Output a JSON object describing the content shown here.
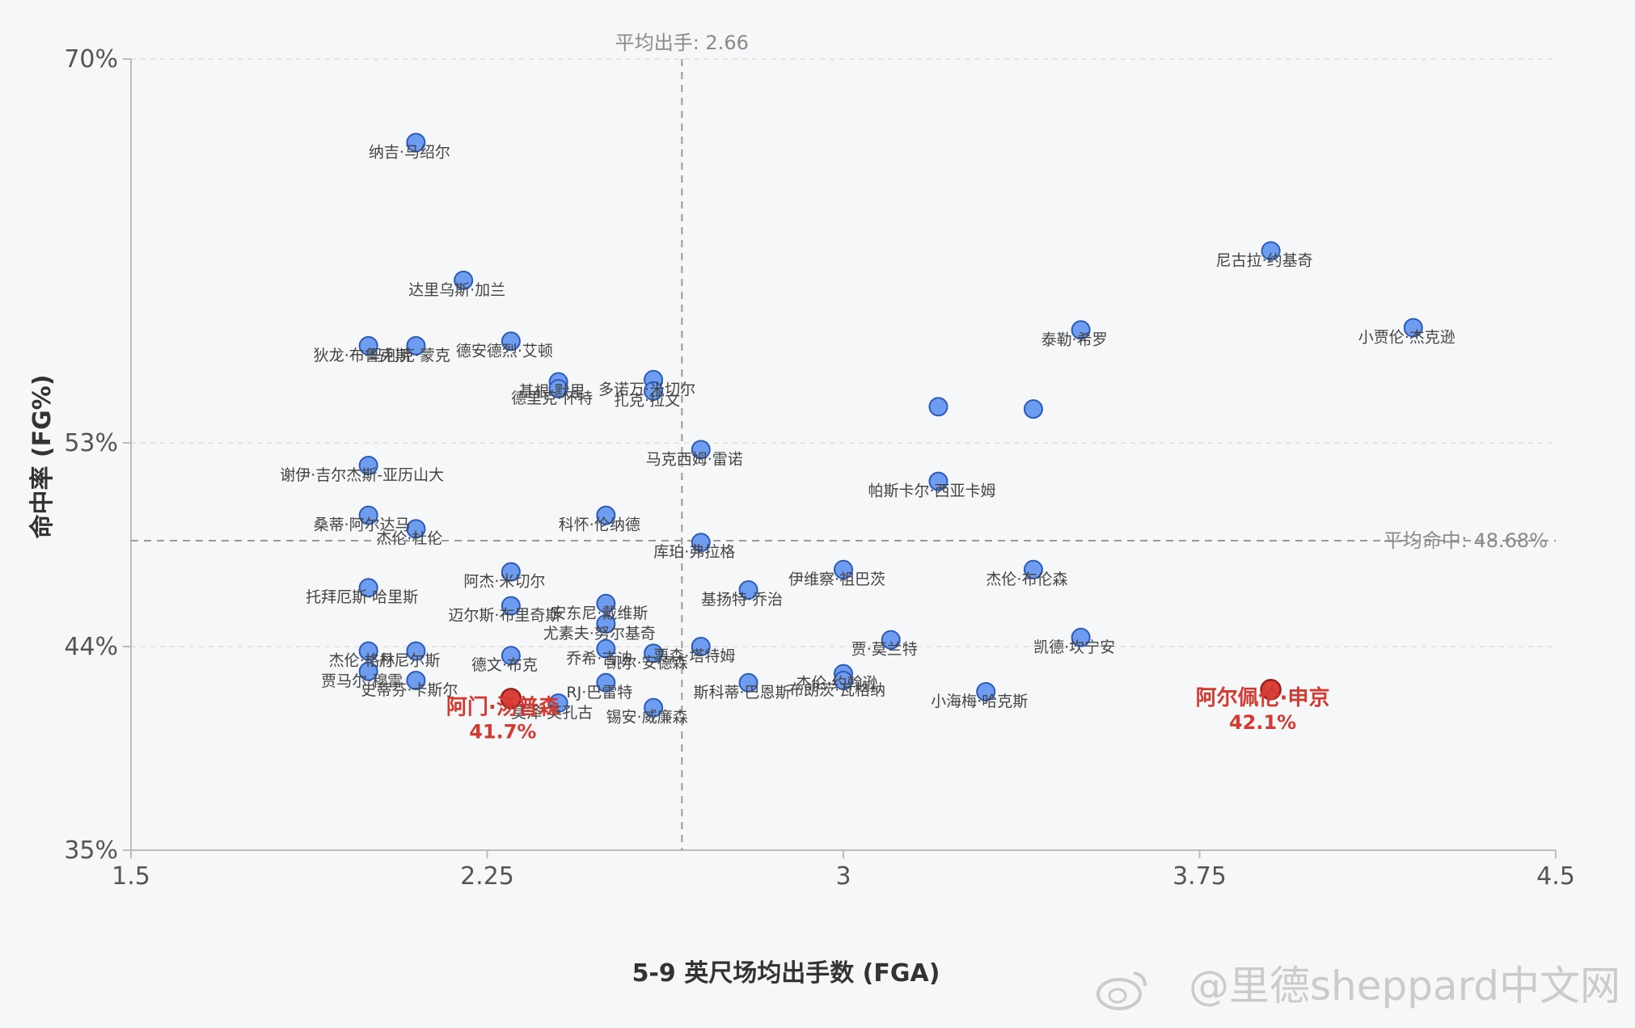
{
  "chart_data": {
    "type": "scatter",
    "title": "",
    "xlabel": "5-9 英尺场均出手数 (FGA)",
    "ylabel": "命中率 (FG%)",
    "xlim": [
      1.5,
      4.5
    ],
    "ylim": [
      35,
      70
    ],
    "x_ticks": [
      "1.5",
      "2.25",
      "3",
      "3.75",
      "4.5"
    ],
    "x_tick_values": [
      1.5,
      2.25,
      3,
      3.75,
      4.5
    ],
    "y_ticks": [
      "35%",
      "44%",
      "53%",
      "70%"
    ],
    "y_tick_values": [
      35,
      44,
      53,
      70
    ],
    "avg_x": {
      "value": 2.66,
      "label": "平均出手: 2.66"
    },
    "avg_y": {
      "value": 48.68,
      "label": "平均命中: 48.68%"
    },
    "colors": {
      "normal": "#6d9cf0",
      "normal_stroke": "#2c5ab8",
      "highlight": "#d9413a",
      "highlight_text": "#d33a32",
      "label": "#444444",
      "axis": "#bbbbbb",
      "grid": "#dddddd"
    },
    "points": [
      {
        "name": "纳吉·马绍尔",
        "x": 2.1,
        "y": 66.3
      },
      {
        "name": "尼古拉·约基奇",
        "x": 3.9,
        "y": 61.5
      },
      {
        "name": "达里乌斯·加兰",
        "x": 2.2,
        "y": 60.2
      },
      {
        "name": "泰勒·希罗",
        "x": 3.5,
        "y": 58.0
      },
      {
        "name": "小贾伦·杰克逊",
        "x": 4.2,
        "y": 58.1
      },
      {
        "name": "狄龙·布鲁克斯",
        "x": 2.0,
        "y": 57.3
      },
      {
        "name": "马利克·蒙克",
        "x": 2.1,
        "y": 57.3
      },
      {
        "name": "德安德烈·艾顿",
        "x": 2.3,
        "y": 57.5
      },
      {
        "name": "基根·默里",
        "x": 2.4,
        "y": 55.7
      },
      {
        "name": "德里克·怀特",
        "x": 2.4,
        "y": 55.4
      },
      {
        "name": "多诺万·米切尔",
        "x": 2.6,
        "y": 55.8
      },
      {
        "name": "扎克·拉文",
        "x": 2.6,
        "y": 55.3
      },
      {
        "name": "马克西姆·雷诺",
        "x": 2.7,
        "y": 52.7
      },
      {
        "name": "帕斯卡尔·西亚卡姆",
        "x": 3.2,
        "y": 51.3
      },
      {
        "name": "谢伊·吉尔杰斯-亚历山大",
        "x": 2.0,
        "y": 52.0
      },
      {
        "name": "桑蒂·阿尔达马",
        "x": 2.0,
        "y": 49.8
      },
      {
        "name": "杰伦·杜伦",
        "x": 2.1,
        "y": 49.2
      },
      {
        "name": "科怀·伦纳德",
        "x": 2.5,
        "y": 49.8
      },
      {
        "name": "库珀·弗拉格",
        "x": 2.7,
        "y": 48.6
      },
      {
        "name": "阿杰·米切尔",
        "x": 2.3,
        "y": 47.3
      },
      {
        "name": "伊维察·祖巴茨",
        "x": 3.0,
        "y": 47.4
      },
      {
        "name": "杰伦·布伦森",
        "x": 3.4,
        "y": 47.4
      },
      {
        "name": "托拜厄斯·哈里斯",
        "x": 2.0,
        "y": 46.6
      },
      {
        "name": "基扬特·乔治",
        "x": 2.8,
        "y": 46.5
      },
      {
        "name": "迈尔斯·布里奇斯",
        "x": 2.3,
        "y": 45.8
      },
      {
        "name": "安东尼·戴维斯",
        "x": 2.5,
        "y": 45.9
      },
      {
        "name": "尤素夫·努尔基奇",
        "x": 2.5,
        "y": 45.0
      },
      {
        "name": "贾·莫兰特",
        "x": 3.1,
        "y": 44.3
      },
      {
        "name": "凯德·坎宁安",
        "x": 3.5,
        "y": 44.4
      },
      {
        "name": "杰伦·格林",
        "x": 2.0,
        "y": 43.8
      },
      {
        "name": "德文·布克",
        "x": 2.3,
        "y": 43.6
      },
      {
        "name": "乔希·吉迪",
        "x": 2.5,
        "y": 43.9
      },
      {
        "name": "凯尔·安德森",
        "x": 2.6,
        "y": 43.7
      },
      {
        "name": "贾森·塔特姆",
        "x": 2.7,
        "y": 44.0
      },
      {
        "name": "丹尼尔斯",
        "x": 2.1,
        "y": 43.8
      },
      {
        "name": "杰伦·约翰逊",
        "x": 3.0,
        "y": 42.8
      },
      {
        "name": "贾马尔·穆雷",
        "x": 2.0,
        "y": 42.9
      },
      {
        "name": "史蒂芬·卡斯尔",
        "x": 2.1,
        "y": 42.5
      },
      {
        "name": "RJ·巴雷特",
        "x": 2.5,
        "y": 42.4
      },
      {
        "name": "斯科蒂·巴恩斯",
        "x": 2.8,
        "y": 42.4
      },
      {
        "name": "布朗茨·瓦格纳",
        "x": 3.0,
        "y": 42.5
      },
      {
        "name": "小海梅·哈克斯",
        "x": 3.3,
        "y": 42.0
      },
      {
        "name": "莫泽·英孔古",
        "x": 2.4,
        "y": 41.5
      },
      {
        "name": "锡安·威廉森",
        "x": 2.6,
        "y": 41.3
      },
      {
        "name": "阿门·汤普森",
        "x": 2.3,
        "y": 41.7,
        "highlight": true,
        "value_label": "41.7%"
      },
      {
        "name": "阿尔佩伦·申京",
        "x": 3.9,
        "y": 42.1,
        "highlight": true,
        "value_label": "42.1%"
      },
      {
        "name": "",
        "x": 3.2,
        "y": 54.6
      },
      {
        "name": "",
        "x": 3.4,
        "y": 54.5
      }
    ]
  },
  "watermark": "@里德sheppard中文网"
}
